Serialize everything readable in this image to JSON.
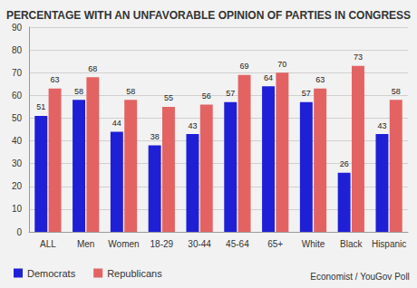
{
  "chart_data": {
    "type": "bar",
    "title": "PERCENTAGE WITH AN UNFAVORABLE OPINION OF PARTIES IN CONGRESS",
    "categories": [
      "ALL",
      "Men",
      "Women",
      "18-29",
      "30-44",
      "45-64",
      "65+",
      "White",
      "Black",
      "Hispanic"
    ],
    "series": [
      {
        "name": "Democrats",
        "color": "#1f1fd6",
        "values": [
          51,
          58,
          44,
          38,
          43,
          57,
          64,
          57,
          26,
          43
        ]
      },
      {
        "name": "Republicans",
        "color": "#e36363",
        "values": [
          63,
          68,
          58,
          55,
          56,
          69,
          70,
          63,
          73,
          58
        ]
      }
    ],
    "ylim": [
      0,
      90
    ],
    "yticks": [
      0,
      10,
      20,
      30,
      40,
      50,
      60,
      70,
      80,
      90
    ],
    "grid": true,
    "data_labels": true,
    "legend": "bottom-left",
    "annotations": [
      "Economist / YouGov Poll"
    ]
  }
}
